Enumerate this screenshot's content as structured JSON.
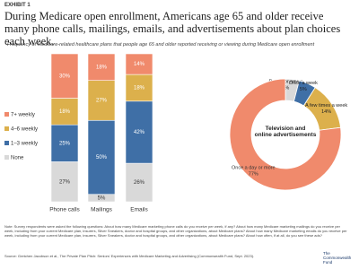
{
  "header": {
    "exhibit": "EXHIBIT 1",
    "title": "During Medicare open enrollment, Americans age 65 and older receive many phone calls, mailings, emails, and advertisements about plan choices each week.",
    "subtitle": "Frequency of Medicare-related healthcare plans that people age 65 and older reported receiving or viewing during Medicare open enrollment"
  },
  "chart_data": [
    {
      "type": "stacked-bar",
      "categories": [
        "Phone calls",
        "Mailings",
        "Emails"
      ],
      "series": [
        {
          "name": "None",
          "color": "#d9d9d9",
          "values": [
            27,
            5,
            26
          ],
          "value_labels": [
            "27%",
            "5%",
            "26%"
          ]
        },
        {
          "name": "1–3 weekly",
          "color": "#3f6fa6",
          "values": [
            25,
            50,
            42
          ],
          "value_labels": [
            "25%",
            "50%",
            "42%"
          ]
        },
        {
          "name": "4–6 weekly",
          "color": "#dcb04c",
          "values": [
            18,
            27,
            18
          ],
          "value_labels": [
            "18%",
            "27%",
            "18%"
          ]
        },
        {
          "name": "7+ weekly",
          "color": "#f08a6c",
          "values": [
            30,
            18,
            14
          ],
          "value_labels": [
            "30%",
            "18%",
            "14%"
          ]
        }
      ]
    },
    {
      "type": "donut",
      "center_label": "Television and online advertisements",
      "categories": [
        "Rarely or never",
        "Once a week",
        "A few times a week",
        "Once a day or more"
      ],
      "values": [
        4,
        5,
        14,
        77
      ],
      "value_labels": [
        "4%",
        "5%",
        "14%",
        "77%"
      ],
      "colors": [
        "#d9d9d9",
        "#3f6fa6",
        "#dcb04c",
        "#f08a6c"
      ]
    }
  ],
  "footer": {
    "note": "Note: Survey respondents were asked the following questions: About how many Medicare marketing phone calls do you receive per week, if any? About how many Medicare marketing mailings do you receive per week, including from your current Medicare plan, insurers, Silver Sneakers, doctor and hospital groups, and other organizations, about Medicare plans? About how many Medicare marketing emails do you receive per week, including from your current Medicare plan, insurers, Silver Sneakers, doctor and hospital groups, and other organizations, about Medicare plans? About how often, if at all, do you see these ads?",
    "source": "Source: Gretchen Jacobson et al., The Private Plan Pitch: Seniors' Experiences with Medicare Marketing and Advertising (Commonwealth Fund, Sept. 2023).",
    "logo": "The Commonwealth Fund"
  }
}
